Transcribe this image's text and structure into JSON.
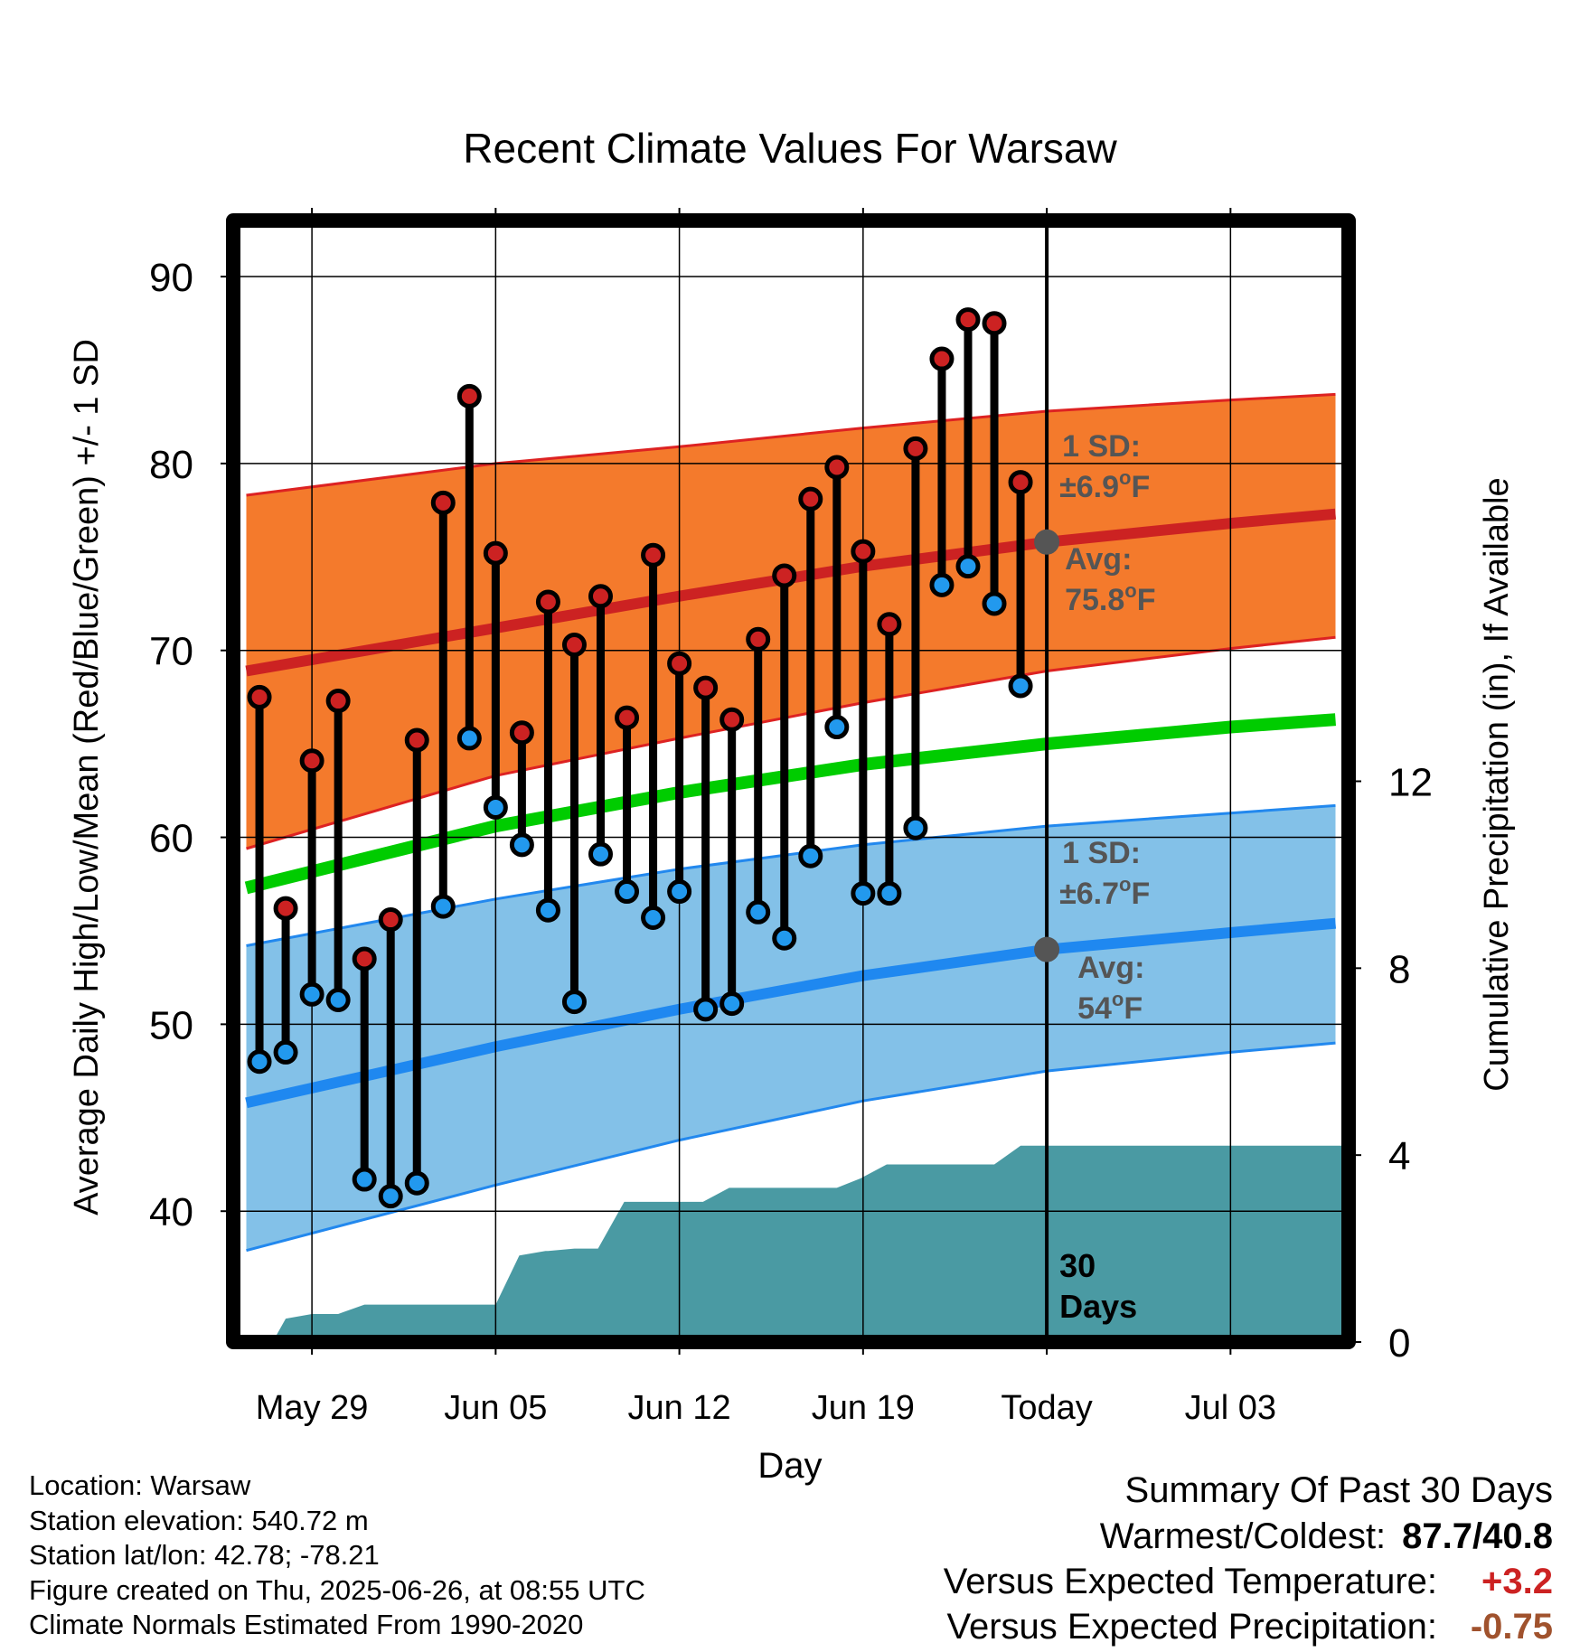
{
  "chart_data": {
    "type": "line",
    "title": "Recent Climate Values For Warsaw",
    "xlabel": "Day",
    "ylabel": "Average Daily High/Low/Mean (Red/Blue/Green) +/- 1 SD",
    "y2label": "Cumulative Precipitation (in), If Available",
    "ylim": [
      33,
      93
    ],
    "y2lim": [
      0,
      24
    ],
    "xlim": [
      -3,
      39.5
    ],
    "y_ticks": [
      40,
      50,
      60,
      70,
      80,
      90
    ],
    "y2_ticks": [
      0,
      4,
      8,
      12
    ],
    "x_ticks": [
      {
        "day": 0,
        "label": "May 29"
      },
      {
        "day": 7,
        "label": "Jun 05"
      },
      {
        "day": 14,
        "label": "Jun 12"
      },
      {
        "day": 21,
        "label": "Jun 19"
      },
      {
        "day": 28,
        "label": "Today"
      },
      {
        "day": 35,
        "label": "Jul 03"
      }
    ],
    "grid": true,
    "today_day": 28,
    "days_label": "30\nDays",
    "normals": {
      "x": [
        -2.5,
        7,
        14,
        21,
        28,
        35,
        39
      ],
      "high_plus_sd": [
        78.3,
        80.0,
        80.9,
        81.9,
        82.8,
        83.4,
        83.7
      ],
      "high_avg": [
        68.9,
        71.2,
        72.9,
        74.5,
        75.8,
        76.8,
        77.3
      ],
      "high_minus_sd": [
        59.4,
        63.3,
        65.3,
        67.2,
        68.9,
        70.1,
        70.7
      ],
      "mean_avg": [
        57.3,
        60.6,
        62.4,
        63.9,
        65.0,
        65.9,
        66.3
      ],
      "low_plus_sd": [
        54.2,
        56.7,
        58.3,
        59.6,
        60.6,
        61.3,
        61.7
      ],
      "low_avg": [
        45.8,
        48.8,
        50.8,
        52.6,
        54.0,
        54.9,
        55.4
      ],
      "low_minus_sd": [
        37.9,
        41.4,
        43.8,
        45.9,
        47.5,
        48.5,
        49.0
      ]
    },
    "series": [
      {
        "name": "High",
        "color": "#cc2222",
        "x": [
          -2,
          -1,
          0,
          1,
          2,
          3,
          4,
          5,
          6,
          7,
          8,
          9,
          10,
          11,
          12,
          13,
          14,
          15,
          16,
          17,
          18,
          19,
          20,
          21,
          22,
          23,
          24,
          25,
          26,
          27
        ],
        "values": [
          67.5,
          56.2,
          64.1,
          67.3,
          53.5,
          55.6,
          65.2,
          77.9,
          83.6,
          75.2,
          65.6,
          72.6,
          70.3,
          72.9,
          66.4,
          75.1,
          69.3,
          68.0,
          66.3,
          70.6,
          74.0,
          78.1,
          79.8,
          75.3,
          71.4,
          80.8,
          85.6,
          87.7,
          87.5,
          79.0
        ]
      },
      {
        "name": "Low",
        "color": "#2299ee",
        "x": [
          -2,
          -1,
          0,
          1,
          2,
          3,
          4,
          5,
          6,
          7,
          8,
          9,
          10,
          11,
          12,
          13,
          14,
          15,
          16,
          17,
          18,
          19,
          20,
          21,
          22,
          23,
          24,
          25,
          26,
          27
        ],
        "values": [
          48.0,
          48.5,
          51.6,
          51.3,
          41.7,
          40.8,
          41.5,
          56.3,
          65.3,
          61.6,
          59.6,
          56.1,
          51.2,
          59.1,
          57.1,
          55.7,
          57.1,
          50.8,
          51.1,
          56.0,
          54.6,
          59.0,
          65.9,
          57.0,
          57.0,
          60.5,
          73.5,
          74.5,
          72.5,
          68.1
        ]
      }
    ],
    "precipitation": {
      "x": [
        -2.5,
        -1.5,
        -1,
        0,
        1,
        2,
        3,
        4,
        5,
        6,
        7,
        7.9,
        8.9,
        9,
        10,
        10.9,
        11.9,
        12,
        13,
        14,
        14.9,
        15.9,
        16,
        17,
        18,
        19,
        20,
        20.9,
        21.9,
        22,
        23,
        24,
        25,
        26,
        27,
        28,
        29,
        30,
        35,
        39.5
      ],
      "values": [
        0,
        0,
        0.5,
        0.6,
        0.6,
        0.8,
        0.8,
        0.8,
        0.8,
        0.8,
        0.8,
        1.85,
        1.95,
        1.95,
        2.0,
        2.0,
        3.0,
        3.0,
        3.0,
        3.0,
        3.0,
        3.3,
        3.3,
        3.3,
        3.3,
        3.3,
        3.3,
        3.5,
        3.8,
        3.8,
        3.8,
        3.8,
        3.8,
        3.8,
        4.2,
        4.2,
        4.2,
        4.2,
        4.2,
        4.2
      ]
    },
    "annotations": {
      "high_sd_label": "1 SD:",
      "high_sd_value": "±6.9",
      "high_avg_label": "Avg:",
      "high_avg_value": "75.8",
      "low_sd_label": "1 SD:",
      "low_sd_value": "±6.7",
      "low_avg_label": "Avg:",
      "low_avg_value": "54",
      "degree_unit": "o",
      "temp_unit": "F"
    },
    "colors": {
      "high_band": "#f47a2c",
      "high_edge": "#dd2222",
      "high_avg": "#cc2222",
      "mean": "#00cc00",
      "low_band": "#83c1e8",
      "low_edge": "#2288ee",
      "low_avg": "#1f88f0",
      "precip": "#4a9aa3",
      "annotation": "#555555"
    }
  },
  "footer": {
    "location": "Location: Warsaw",
    "elevation": "Station elevation: 540.72 m",
    "latlon": "Station lat/lon: 42.78; -78.21",
    "created": "Figure created on Thu, 2025-06-26, at 08:55 UTC",
    "normals": "Climate Normals Estimated From 1990-2020"
  },
  "summary": {
    "title": "Summary Of Past 30 Days",
    "warm_cold_label": "Warmest/Coldest:",
    "warm_cold_value": "87.7/40.8",
    "temp_label": "Versus Expected Temperature:",
    "temp_value": "+3.2",
    "temp_color": "#cc2222",
    "precip_label": "Versus Expected Precipitation:",
    "precip_value": "-0.75",
    "precip_color": "#a0522d"
  }
}
